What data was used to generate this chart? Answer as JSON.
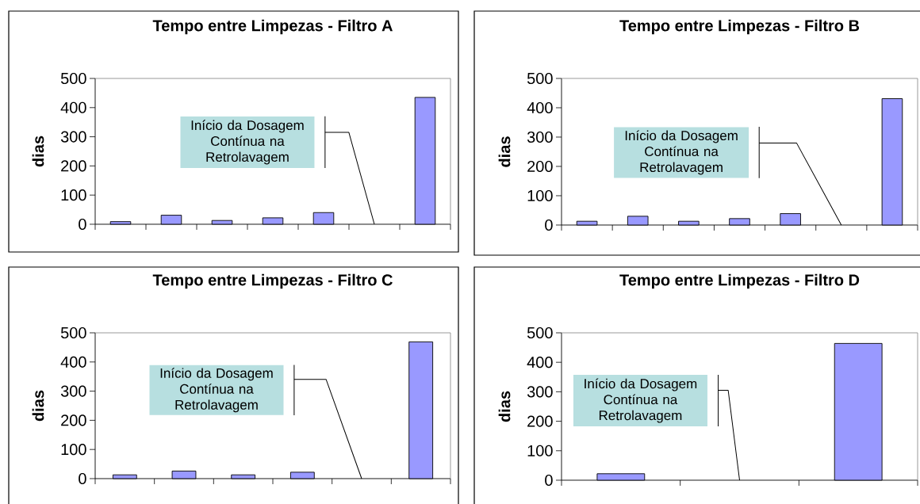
{
  "chart_data": [
    {
      "type": "bar",
      "title": "Tempo entre Limpezas - Filtro A",
      "ylabel": "dias",
      "categories": [
        null,
        null,
        null,
        null,
        null,
        null,
        null
      ],
      "values": [
        9,
        31,
        13,
        22,
        40,
        null,
        435
      ],
      "color": "#9999ff",
      "ylim": [
        0,
        500
      ],
      "yticks": [
        0,
        100,
        200,
        300,
        400,
        500
      ],
      "annotations": [
        "Início da Dosagem Contínua na Retrolavagem"
      ]
    },
    {
      "type": "bar",
      "title": "Tempo entre Limpezas - Filtro B",
      "ylabel": "dias",
      "categories": [
        null,
        null,
        null,
        null,
        null,
        null,
        null
      ],
      "values": [
        13,
        30,
        13,
        22,
        39,
        null,
        431
      ],
      "color": "#9999ff",
      "ylim": [
        0,
        500
      ],
      "yticks": [
        0,
        100,
        200,
        300,
        400,
        500
      ],
      "annotations": [
        "Início da Dosagem Contínua na Retrolavagem"
      ]
    },
    {
      "type": "bar",
      "title": "Tempo entre Limpezas - Filtro C",
      "ylabel": "dias",
      "categories": [
        null,
        null,
        null,
        null,
        null,
        null
      ],
      "values": [
        13,
        26,
        13,
        22,
        null,
        469
      ],
      "color": "#9999ff",
      "ylim": [
        0,
        500
      ],
      "yticks": [
        0,
        100,
        200,
        300,
        400,
        500
      ],
      "annotations": [
        "Início da Dosagem Contínua na Retrolavagem"
      ]
    },
    {
      "type": "bar",
      "title": "Tempo entre Limpezas - Filtro D",
      "ylabel": "dias",
      "categories": [
        null,
        null,
        null
      ],
      "values": [
        22,
        null,
        464
      ],
      "color": "#9999ff",
      "ylim": [
        0,
        500
      ],
      "yticks": [
        0,
        100,
        200,
        300,
        400,
        500
      ],
      "annotations": [
        "Início da Dosagem Contínua na Retrolavagem"
      ]
    }
  ]
}
